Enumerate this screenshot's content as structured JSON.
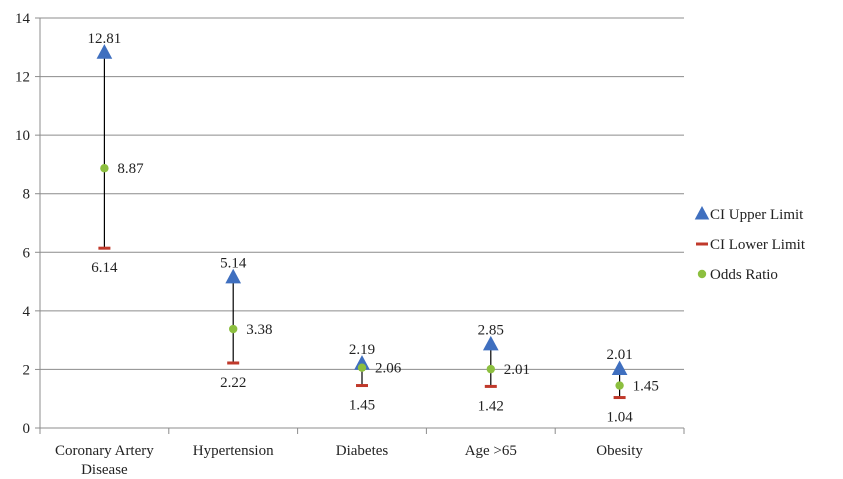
{
  "chart_data": {
    "type": "scatter",
    "title": "",
    "xlabel": "",
    "ylabel": "",
    "ylim": [
      0,
      14
    ],
    "y_ticks": [
      0,
      2,
      4,
      6,
      8,
      10,
      12,
      14
    ],
    "grid": true,
    "legend_position": "right",
    "categories": [
      "Coronary Artery Disease",
      "Hypertension",
      "Diabetes",
      "Age >65",
      "Obesity"
    ],
    "category_labels": [
      [
        "Coronary Artery",
        "Disease"
      ],
      [
        "Hypertension"
      ],
      [
        "Diabetes"
      ],
      [
        "Age >65"
      ],
      [
        "Obesity"
      ]
    ],
    "series": [
      {
        "name": "CI Upper Limit",
        "marker": "triangle",
        "color": "#3f6fbf",
        "values": [
          12.81,
          5.14,
          2.19,
          2.85,
          2.01
        ],
        "labels": [
          "12.81",
          "5.14",
          "2.19",
          "2.85",
          "2.01"
        ]
      },
      {
        "name": "CI Lower Limit",
        "marker": "dash",
        "color": "#c0392b",
        "values": [
          6.14,
          2.22,
          1.45,
          1.42,
          1.04
        ],
        "labels": [
          "6.14",
          "2.22",
          "1.45",
          "1.42",
          "1.04"
        ]
      },
      {
        "name": "Odds Ratio",
        "marker": "circle",
        "color": "#8cbf3f",
        "values": [
          8.87,
          3.38,
          2.06,
          2.01,
          1.45
        ],
        "labels": [
          "8.87",
          "3.38",
          "2.06",
          "2.01",
          "1.45"
        ]
      }
    ]
  }
}
